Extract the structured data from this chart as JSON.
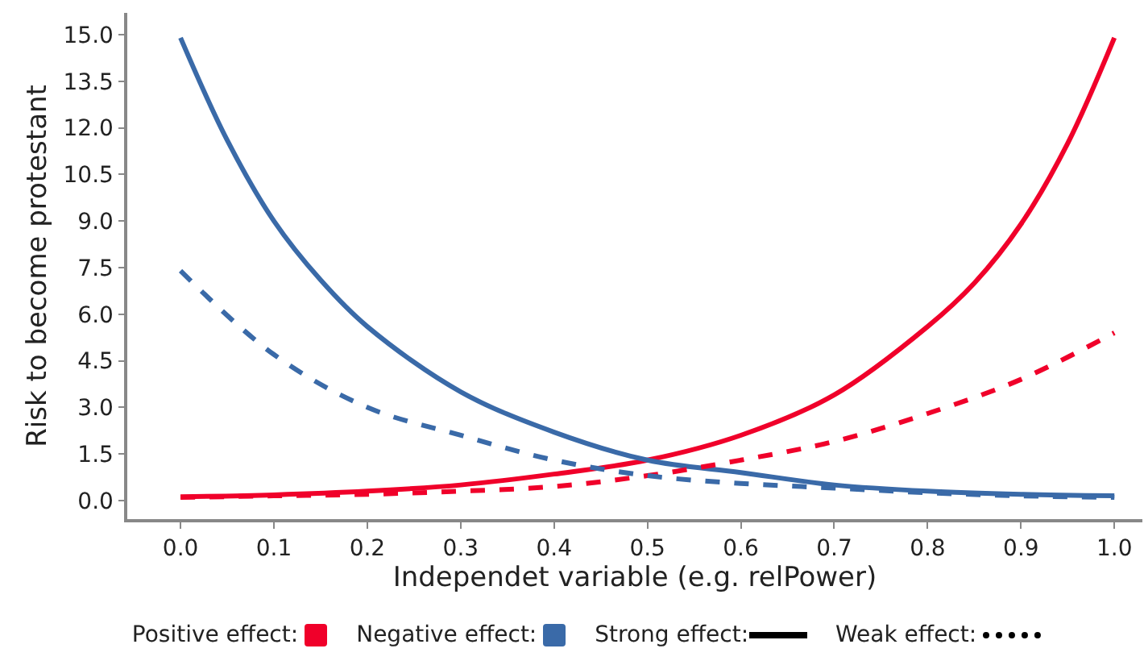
{
  "chart_data": {
    "type": "line",
    "xlabel": "Independet variable (e.g. relPower)",
    "ylabel": "Risk to become protestant",
    "x": [
      0,
      0.1,
      0.2,
      0.3,
      0.4,
      0.5,
      0.6,
      0.7,
      0.8,
      0.9,
      1.0
    ],
    "series": [
      {
        "color": "#f0002a",
        "line_style": "solid",
        "x": [
          0,
          0.1,
          0.2,
          0.3,
          0.4,
          0.5,
          0.6,
          0.7,
          0.8,
          0.85,
          0.9,
          0.95,
          1.0
        ],
        "values": [
          0.12,
          0.18,
          0.3,
          0.5,
          0.85,
          1.3,
          2.1,
          3.4,
          5.6,
          7.0,
          8.9,
          11.5,
          14.9
        ]
      },
      {
        "color": "#3a6aa8",
        "line_style": "solid",
        "x": [
          0,
          0.05,
          0.1,
          0.15,
          0.2,
          0.3,
          0.4,
          0.5,
          0.6,
          0.7,
          0.8,
          0.9,
          1.0
        ],
        "values": [
          14.9,
          11.6,
          9.0,
          7.1,
          5.6,
          3.5,
          2.2,
          1.3,
          0.9,
          0.5,
          0.3,
          0.2,
          0.15
        ]
      },
      {
        "color": "#f0002a",
        "line_style": "dashed",
        "values": [
          0.1,
          0.15,
          0.2,
          0.3,
          0.45,
          0.8,
          1.3,
          1.9,
          2.8,
          3.9,
          5.4
        ]
      },
      {
        "color": "#3a6aa8",
        "line_style": "dashed",
        "values": [
          7.4,
          4.7,
          3.0,
          2.1,
          1.3,
          0.8,
          0.55,
          0.4,
          0.25,
          0.15,
          0.1
        ]
      }
    ],
    "xlim": [
      -0.057,
      1.03
    ],
    "xticks": [
      {
        "value": 0,
        "label": "0.0"
      },
      0.1,
      0.2,
      0.3,
      0.4,
      0.5,
      0.6,
      0.7,
      0.8,
      0.9,
      {
        "value": 1,
        "label": "1.0"
      }
    ],
    "ylim": [
      -0.6,
      15.7
    ],
    "yticks": [
      {
        "value": 0,
        "label": "0.0"
      },
      1.5,
      {
        "value": 3,
        "label": "3.0"
      },
      4.5,
      {
        "value": 6,
        "label": "6.0"
      },
      7.5,
      {
        "value": 9,
        "label": "9.0"
      },
      10.5,
      {
        "value": 12,
        "label": "12.0"
      },
      13.5,
      {
        "value": 15,
        "label": "15.0"
      }
    ],
    "grid": false,
    "annotations": [
      "Positive effect:",
      "Negative effect:",
      "Strong effect:",
      "Weak effect:"
    ]
  }
}
